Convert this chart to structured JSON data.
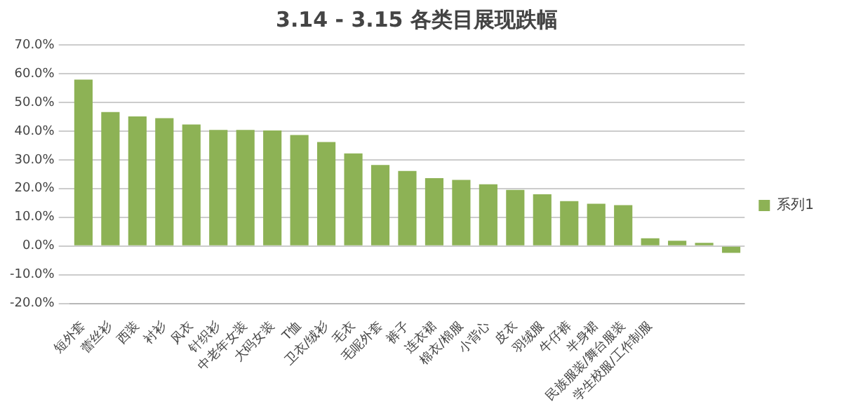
{
  "chart_data": {
    "type": "bar",
    "title": "3.14 - 3.15 各类目展现跌幅",
    "categories": [
      "短外套",
      "蕾丝衫",
      "西装",
      "衬衫",
      "风衣",
      "针织衫",
      "中老年女装",
      "大码女装",
      "T恤",
      "卫衣/绒衫",
      "毛衣",
      "毛呢外套",
      "裤子",
      "连衣裙",
      "棉衣/棉服",
      "小背心",
      "皮衣",
      "羽绒服",
      "牛仔裤",
      "半身裙",
      "民族服装/舞台服装",
      "学生校服/工作制服",
      null,
      null,
      null
    ],
    "series": [
      {
        "name": "系列1",
        "color": "#8db255",
        "values": [
          57.9,
          46.6,
          45.1,
          44.5,
          42.3,
          40.4,
          40.4,
          40.2,
          38.6,
          36.2,
          32.2,
          28.2,
          26.1,
          23.6,
          23.0,
          21.5,
          19.5,
          18.0,
          15.6,
          14.7,
          14.2,
          2.7,
          1.8,
          1.1,
          -2.4
        ]
      }
    ],
    "ylim": [
      -20,
      70
    ],
    "yticks": [
      {
        "value": -20,
        "label": "-20.0%"
      },
      {
        "value": -10,
        "label": "-10.0%"
      },
      {
        "value": 0,
        "label": "0.0%"
      },
      {
        "value": 10,
        "label": "10.0%"
      },
      {
        "value": 20,
        "label": "20.0%"
      },
      {
        "value": 30,
        "label": "30.0%"
      },
      {
        "value": 40,
        "label": "40.0%"
      },
      {
        "value": 50,
        "label": "50.0%"
      },
      {
        "value": 60,
        "label": "60.0%"
      },
      {
        "value": 70,
        "label": "70.0%"
      }
    ],
    "grid": "y",
    "legend": "right"
  }
}
